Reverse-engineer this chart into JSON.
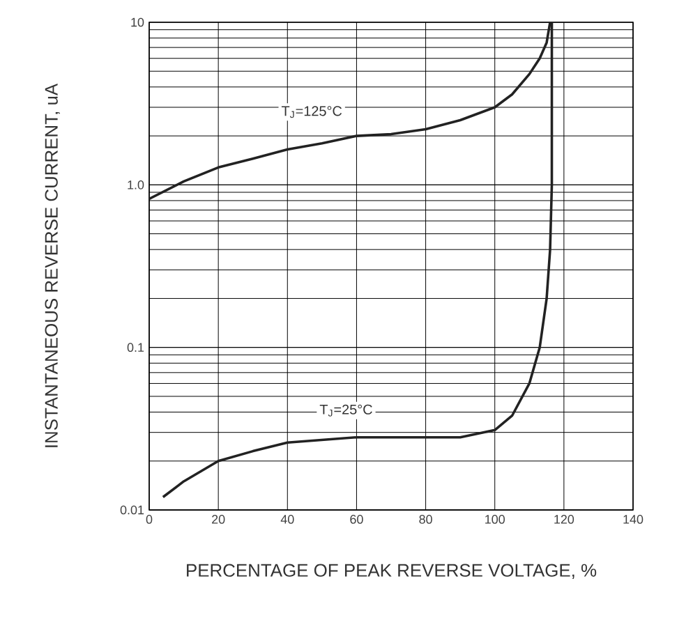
{
  "chart_data": {
    "type": "line",
    "xlabel": "PERCENTAGE OF PEAK REVERSE VOLTAGE, %",
    "ylabel": "INSTANTANEOUS REVERSE CURRENT, uA",
    "log": "y",
    "grid": true,
    "marker": "none",
    "line_style": "solid",
    "xlim": [
      0,
      140
    ],
    "xticks": [
      0,
      20,
      40,
      60,
      80,
      100,
      120,
      140
    ],
    "ylim": [
      0.01,
      10
    ],
    "yticks": [
      {
        "value": 0.01,
        "label": "0.01"
      },
      {
        "value": 0.1,
        "label": "0.1"
      },
      {
        "value": 1,
        "label": "1.0"
      },
      {
        "value": 10,
        "label": "10"
      }
    ],
    "series": [
      {
        "color": "#222222",
        "x": [
          0,
          10,
          20,
          30,
          40,
          50,
          60,
          70,
          80,
          90,
          100,
          105,
          110,
          113,
          115,
          116
        ],
        "values": [
          0.82,
          1.05,
          1.28,
          1.45,
          1.65,
          1.8,
          2.0,
          2.05,
          2.2,
          2.5,
          3.0,
          3.6,
          4.8,
          6,
          7.5,
          10
        ]
      },
      {
        "color": "#222222",
        "x": [
          4,
          10,
          20,
          30,
          40,
          60,
          80,
          90,
          100,
          105,
          110,
          113,
          115,
          116,
          116.5,
          116.5
        ],
        "values": [
          0.012,
          0.015,
          0.02,
          0.023,
          0.026,
          0.028,
          0.028,
          0.028,
          0.031,
          0.038,
          0.06,
          0.1,
          0.2,
          0.4,
          1,
          10
        ]
      }
    ],
    "annotations": [
      "T$_{J}$=125°C",
      "T$_{J}$=25°C"
    ]
  }
}
